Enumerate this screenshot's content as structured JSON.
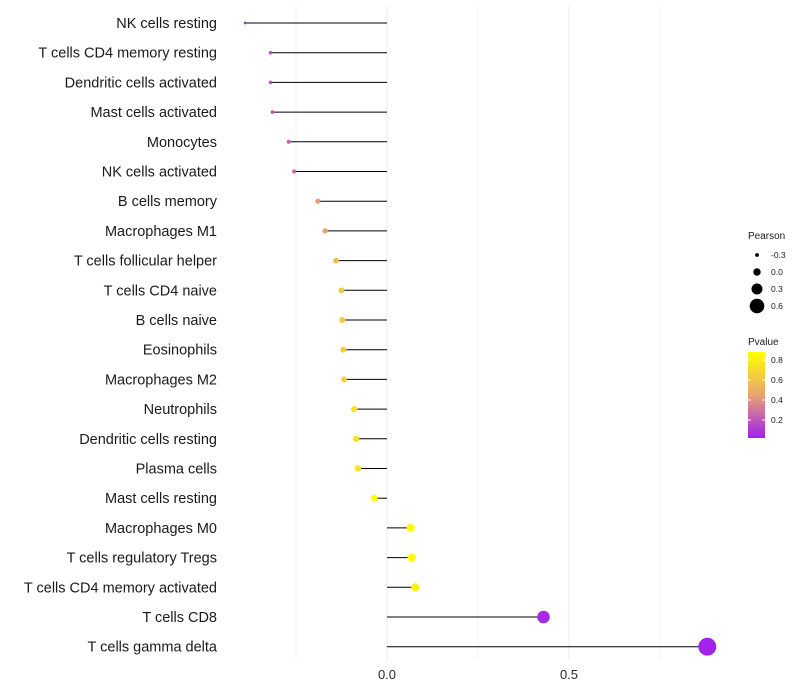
{
  "chart_data": {
    "type": "lollipop",
    "title": "",
    "xlabel": "",
    "ylabel": "",
    "xlim": [
      -0.42,
      0.92
    ],
    "x_ticks": [
      0.0,
      0.5
    ],
    "x_tick_labels": [
      "0.0",
      "0.5"
    ],
    "grid": true,
    "categories": [
      "NK cells resting",
      "T cells CD4 memory resting",
      "Dendritic cells activated",
      "Mast cells activated",
      "Monocytes",
      "NK cells activated",
      "B cells memory",
      "Macrophages M1",
      "T cells follicular helper",
      "T cells CD4 naive",
      "B cells naive",
      "Eosinophils",
      "Macrophages M2",
      "Neutrophils",
      "Dendritic cells resting",
      "Plasma cells",
      "Mast cells resting",
      "Macrophages M0",
      "T cells regulatory  Tregs",
      "T cells CD4 memory activated",
      "T cells CD8",
      "T cells gamma delta"
    ],
    "values": [
      -0.39,
      -0.32,
      -0.32,
      -0.315,
      -0.27,
      -0.255,
      -0.19,
      -0.17,
      -0.14,
      -0.125,
      -0.123,
      -0.12,
      -0.118,
      -0.09,
      -0.085,
      -0.08,
      -0.035,
      0.065,
      0.068,
      0.078,
      0.43,
      0.88
    ],
    "pvalues": [
      0.06,
      0.18,
      0.18,
      0.19,
      0.24,
      0.26,
      0.42,
      0.46,
      0.58,
      0.62,
      0.63,
      0.64,
      0.65,
      0.74,
      0.75,
      0.76,
      0.9,
      0.86,
      0.86,
      0.82,
      0.05,
      0.03
    ],
    "size_legend": {
      "title": "Pearson",
      "values": [
        -0.3,
        0.0,
        0.3,
        0.6
      ],
      "labels": [
        "-0.3",
        "0.0",
        "0.3",
        "0.6"
      ]
    },
    "color_legend": {
      "title": "Pvalue",
      "range": [
        0.02,
        0.88
      ],
      "ticks": [
        0.2,
        0.4,
        0.6,
        0.8
      ],
      "tick_labels": [
        "0.2",
        "0.4",
        "0.6",
        "0.8"
      ],
      "low_color": "#a020f0",
      "high_color": "#ffff00",
      "mid_color": "#e8a36e"
    },
    "stem_color": "#000000",
    "grid_color": "#ebebeb"
  }
}
